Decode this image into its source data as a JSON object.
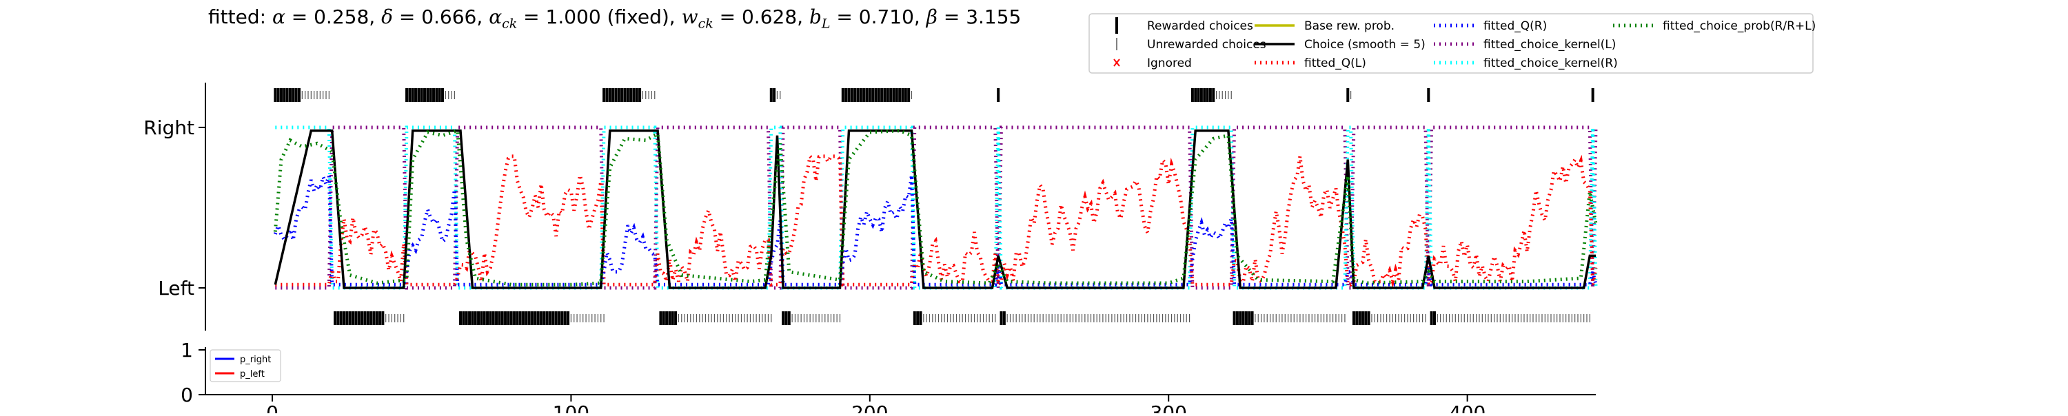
{
  "chart_data": [
    {
      "type": "line",
      "title": {
        "prefix": "fitted: ",
        "params": [
          {
            "symbol": "α",
            "sub": "",
            "value": "0.258",
            "suffix": ""
          },
          {
            "symbol": "δ",
            "sub": "",
            "value": "0.666",
            "suffix": ""
          },
          {
            "symbol": "α",
            "sub": "ck",
            "value": "1.000",
            "suffix": " (fixed)"
          },
          {
            "symbol": "w",
            "sub": "ck",
            "value": "0.628",
            "suffix": ""
          },
          {
            "symbol": "b",
            "sub": "L",
            "value": "0.710",
            "suffix": ""
          },
          {
            "symbol": "β",
            "sub": "",
            "value": "3.155",
            "suffix": ""
          }
        ]
      },
      "yticks": [
        {
          "label": "Left",
          "value": 0
        },
        {
          "label": "Right",
          "value": 1
        }
      ],
      "xlim": [
        0,
        443
      ],
      "legend_position": "upper-right",
      "legend": [
        {
          "label": "Rewarded choices",
          "color": "#000000",
          "style": "tick-thick"
        },
        {
          "label": "Unrewarded choices",
          "color": "#555555",
          "style": "tick-thin"
        },
        {
          "label": "Ignored",
          "color": "#ff0000",
          "style": "x"
        },
        {
          "label": "Base rew. prob.",
          "color": "#bfbf00",
          "style": "solid"
        },
        {
          "label": "Choice (smooth = 5)",
          "color": "#000000",
          "style": "solid"
        },
        {
          "label": "fitted_Q(L)",
          "color": "#ff0000",
          "style": "dotted"
        },
        {
          "label": "fitted_Q(R)",
          "color": "#0000ff",
          "style": "dotted"
        },
        {
          "label": "fitted_choice_kernel(L)",
          "color": "#800080",
          "style": "dotted"
        },
        {
          "label": "fitted_choice_kernel(R)",
          "color": "#00ffff",
          "style": "dotted"
        },
        {
          "label": "fitted_choice_prob(R/R+L)",
          "color": "#008000",
          "style": "dotted"
        }
      ],
      "right_blocks": [
        [
          1,
          9,
          20
        ],
        [
          45,
          57,
          62
        ],
        [
          111,
          123,
          129
        ],
        [
          167,
          168,
          171
        ],
        [
          191,
          213,
          215
        ],
        [
          243,
          243,
          244
        ],
        [
          308,
          315,
          322
        ],
        [
          360,
          360,
          362
        ],
        [
          387,
          387,
          388
        ],
        [
          442,
          442,
          443
        ]
      ],
      "left_blocks": [
        [
          21,
          37,
          45
        ],
        [
          63,
          99,
          112
        ],
        [
          130,
          135,
          168
        ],
        [
          171,
          173,
          191
        ],
        [
          215,
          217,
          243
        ],
        [
          244,
          245,
          308
        ],
        [
          322,
          328,
          360
        ],
        [
          362,
          367,
          387
        ],
        [
          388,
          389,
          442
        ]
      ],
      "series": [
        {
          "name": "Choice (smooth = 5)",
          "color": "#000000",
          "x": [
            1,
            13,
            20,
            24,
            44,
            47,
            63,
            67,
            110,
            113,
            129,
            133,
            165,
            167,
            169,
            171,
            190,
            193,
            214,
            218,
            241,
            243,
            246,
            305,
            309,
            320,
            324,
            356,
            360,
            362,
            385,
            387,
            389,
            439,
            441,
            443
          ],
          "y": [
            0.02,
            0.98,
            0.98,
            0.0,
            0.0,
            0.98,
            0.98,
            0.0,
            0.0,
            0.98,
            0.98,
            0.0,
            0.0,
            0.2,
            0.95,
            0.0,
            0.0,
            0.98,
            0.98,
            0.0,
            0.0,
            0.2,
            0.0,
            0.0,
            0.98,
            0.98,
            0.0,
            0.0,
            0.8,
            0.0,
            0.0,
            0.2,
            0.0,
            0.0,
            0.2,
            0.2
          ]
        },
        {
          "name": "fitted_choice_prob(R/R+L)",
          "color": "#008000",
          "x": [
            1,
            3,
            6,
            10,
            15,
            20,
            23,
            26,
            35,
            45,
            47,
            52,
            57,
            62,
            65,
            68,
            80,
            100,
            110,
            113,
            118,
            125,
            129,
            132,
            137,
            160,
            165,
            168,
            170,
            173,
            190,
            193,
            200,
            210,
            214,
            218,
            225,
            240,
            243,
            246,
            260,
            300,
            305,
            309,
            315,
            320,
            323,
            330,
            355,
            360,
            362,
            366,
            385,
            387,
            389,
            420,
            438,
            441,
            443
          ],
          "y": [
            0.35,
            0.8,
            0.92,
            0.88,
            0.9,
            0.85,
            0.4,
            0.08,
            0.03,
            0.05,
            0.8,
            0.97,
            0.95,
            0.98,
            0.3,
            0.06,
            0.02,
            0.02,
            0.03,
            0.75,
            0.93,
            0.92,
            0.96,
            0.3,
            0.08,
            0.04,
            0.05,
            0.6,
            0.9,
            0.1,
            0.05,
            0.8,
            0.97,
            0.98,
            0.95,
            0.1,
            0.04,
            0.03,
            0.15,
            0.04,
            0.03,
            0.03,
            0.06,
            0.8,
            0.93,
            0.95,
            0.2,
            0.05,
            0.04,
            0.7,
            0.05,
            0.03,
            0.04,
            0.1,
            0.04,
            0.04,
            0.06,
            0.6,
            0.4
          ]
        }
      ]
    },
    {
      "type": "line",
      "yticks": [
        {
          "label": "0",
          "value": 0
        },
        {
          "label": "1",
          "value": 1
        }
      ],
      "xticks": [
        {
          "label": "0",
          "value": 0
        },
        {
          "label": "100",
          "value": 100
        },
        {
          "label": "200",
          "value": 200
        },
        {
          "label": "300",
          "value": 300
        },
        {
          "label": "400",
          "value": 400
        }
      ],
      "legend_position": "upper-left",
      "legend": [
        {
          "label": "p_right",
          "color": "#0000ff",
          "style": "solid"
        },
        {
          "label": "p_left",
          "color": "#ff0000",
          "style": "solid"
        }
      ]
    }
  ]
}
